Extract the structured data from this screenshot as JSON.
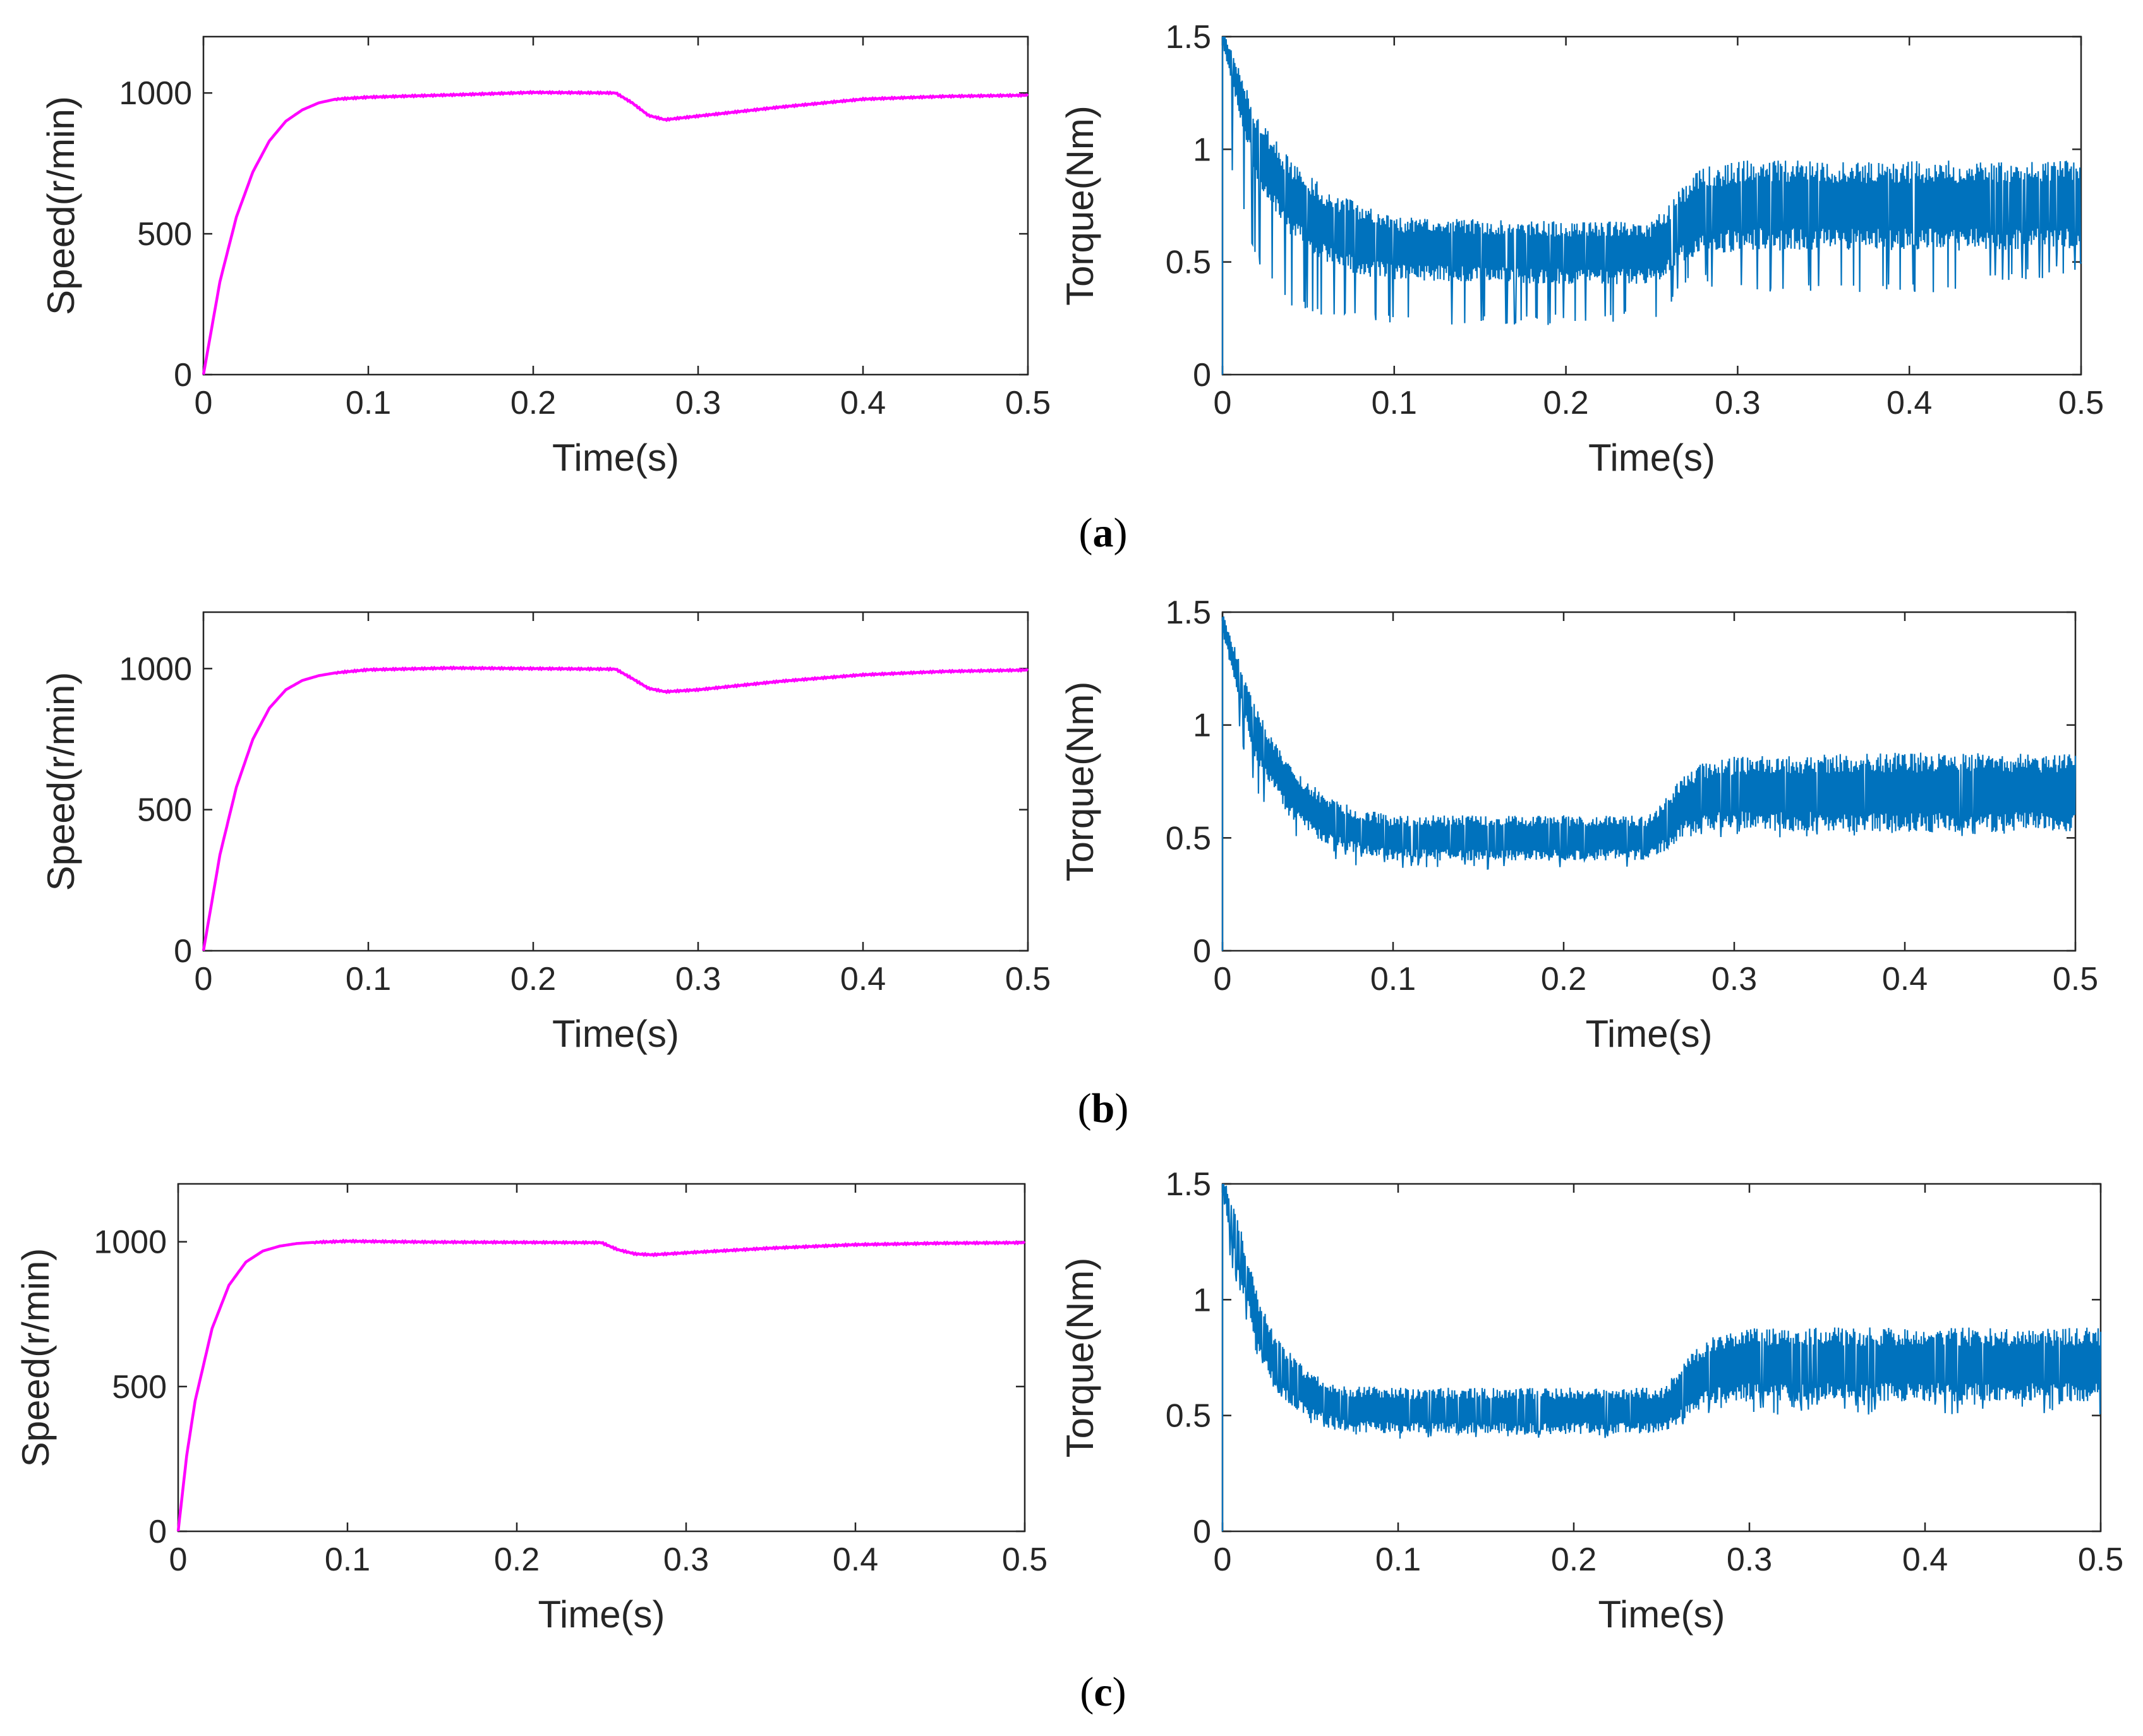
{
  "colors": {
    "speed": "#ff00ff",
    "torque": "#0072bd",
    "axis": "#262626"
  },
  "panels": [
    {
      "label": "a",
      "speed_chart": {
        "type": "line",
        "xlabel": "Time(s)",
        "ylabel": "Speed(r/min)",
        "xlim": [
          0,
          0.5
        ],
        "ylim": [
          0,
          1200
        ],
        "xticks": [
          0,
          0.1,
          0.2,
          0.3,
          0.4,
          0.5
        ],
        "yticks": [
          0,
          500,
          1000
        ],
        "xtick_labels": [
          "0",
          "0.1",
          "0.2",
          "0.3",
          "0.4",
          "0.5"
        ],
        "ytick_labels": [
          "0",
          "500",
          "1000"
        ],
        "series": [
          {
            "name": "speed",
            "x": [
              0,
              0.01,
              0.02,
              0.03,
              0.04,
              0.05,
              0.06,
              0.07,
              0.08,
              0.1,
              0.15,
              0.2,
              0.25,
              0.26,
              0.27,
              0.28,
              0.3,
              0.35,
              0.4,
              0.45,
              0.5
            ],
            "y": [
              0,
              330,
              560,
              720,
              830,
              900,
              940,
              965,
              978,
              985,
              993,
              1002,
              1000,
              965,
              920,
              905,
              918,
              950,
              978,
              988,
              992
            ]
          }
        ]
      },
      "torque_chart": {
        "type": "line",
        "xlabel": "Time(s)",
        "ylabel": "Torque(Nm)",
        "xlim": [
          0,
          0.5
        ],
        "ylim": [
          0,
          1.5
        ],
        "xticks": [
          0,
          0.1,
          0.2,
          0.3,
          0.4,
          0.5
        ],
        "yticks": [
          0,
          0.5,
          1,
          1.5
        ],
        "xtick_labels": [
          "0",
          "0.1",
          "0.2",
          "0.3",
          "0.4",
          "0.5"
        ],
        "ytick_labels": [
          "0",
          "0.5",
          "1",
          "1.5"
        ],
        "envelope": {
          "x": [
            0,
            0.02,
            0.04,
            0.06,
            0.08,
            0.1,
            0.2,
            0.25,
            0.26,
            0.27,
            0.28,
            0.3,
            0.4,
            0.5
          ],
          "center": [
            1.5,
            1.0,
            0.78,
            0.66,
            0.6,
            0.56,
            0.54,
            0.54,
            0.6,
            0.68,
            0.72,
            0.75,
            0.75,
            0.75
          ],
          "amplitude": [
            0.05,
            0.15,
            0.17,
            0.17,
            0.16,
            0.14,
            0.14,
            0.14,
            0.16,
            0.18,
            0.2,
            0.2,
            0.2,
            0.2
          ],
          "spike_low": [
            1.0,
            0.5,
            0.3,
            0.25,
            0.25,
            0.22,
            0.22,
            0.24,
            0.3,
            0.4,
            0.4,
            0.35,
            0.35,
            0.45
          ]
        }
      }
    },
    {
      "label": "b",
      "speed_chart": {
        "type": "line",
        "xlabel": "Time(s)",
        "ylabel": "Speed(r/min)",
        "xlim": [
          0,
          0.5
        ],
        "ylim": [
          0,
          1200
        ],
        "xticks": [
          0,
          0.1,
          0.2,
          0.3,
          0.4,
          0.5
        ],
        "yticks": [
          0,
          500,
          1000
        ],
        "xtick_labels": [
          "0",
          "0.1",
          "0.2",
          "0.3",
          "0.4",
          "0.5"
        ],
        "ytick_labels": [
          "0",
          "500",
          "1000"
        ],
        "series": [
          {
            "name": "speed",
            "x": [
              0,
              0.01,
              0.02,
              0.03,
              0.04,
              0.05,
              0.06,
              0.07,
              0.08,
              0.1,
              0.15,
              0.2,
              0.25,
              0.26,
              0.27,
              0.28,
              0.3,
              0.35,
              0.4,
              0.45,
              0.5
            ],
            "y": [
              0,
              340,
              580,
              750,
              860,
              925,
              958,
              975,
              985,
              996,
              1002,
              1000,
              998,
              965,
              930,
              918,
              925,
              955,
              978,
              990,
              995
            ]
          }
        ]
      },
      "torque_chart": {
        "type": "line",
        "xlabel": "Time(s)",
        "ylabel": "Torque(Nm)",
        "xlim": [
          0,
          0.5
        ],
        "ylim": [
          0,
          1.5
        ],
        "xticks": [
          0,
          0.1,
          0.2,
          0.3,
          0.4,
          0.5
        ],
        "yticks": [
          0,
          0.5,
          1,
          1.5
        ],
        "xtick_labels": [
          "0",
          "0.1",
          "0.2",
          "0.3",
          "0.4",
          "0.5"
        ],
        "ytick_labels": [
          "0",
          "0.5",
          "1",
          "1.5"
        ],
        "envelope": {
          "x": [
            0,
            0.02,
            0.04,
            0.06,
            0.08,
            0.1,
            0.2,
            0.25,
            0.26,
            0.27,
            0.28,
            0.3,
            0.4,
            0.5
          ],
          "center": [
            1.45,
            0.95,
            0.7,
            0.58,
            0.53,
            0.5,
            0.5,
            0.5,
            0.56,
            0.64,
            0.68,
            0.7,
            0.7,
            0.7
          ],
          "amplitude": [
            0.05,
            0.12,
            0.12,
            0.11,
            0.1,
            0.1,
            0.1,
            0.1,
            0.12,
            0.14,
            0.15,
            0.16,
            0.18,
            0.17
          ],
          "spike_low": [
            1.2,
            0.7,
            0.5,
            0.4,
            0.37,
            0.36,
            0.36,
            0.37,
            0.42,
            0.5,
            0.5,
            0.5,
            0.5,
            0.5
          ]
        }
      }
    },
    {
      "label": "c",
      "speed_chart": {
        "type": "line",
        "xlabel": "Time(s)",
        "ylabel": "Speed(r/min)",
        "xlim": [
          0,
          0.5
        ],
        "ylim": [
          0,
          1200
        ],
        "xticks": [
          0,
          0.1,
          0.2,
          0.3,
          0.4,
          0.5
        ],
        "yticks": [
          0,
          500,
          1000
        ],
        "xtick_labels": [
          "0",
          "0.1",
          "0.2",
          "0.3",
          "0.4",
          "0.5"
        ],
        "ytick_labels": [
          "0",
          "500",
          "1000"
        ],
        "series": [
          {
            "name": "speed",
            "x": [
              0,
              0.005,
              0.01,
              0.02,
              0.03,
              0.04,
              0.05,
              0.06,
              0.07,
              0.08,
              0.1,
              0.15,
              0.2,
              0.25,
              0.26,
              0.27,
              0.28,
              0.3,
              0.35,
              0.4,
              0.45,
              0.5
            ],
            "y": [
              0,
              260,
              450,
              700,
              850,
              930,
              968,
              985,
              994,
              998,
              1002,
              999,
              998,
              997,
              972,
              958,
              955,
              962,
              978,
              990,
              995,
              997
            ]
          }
        ]
      },
      "torque_chart": {
        "type": "line",
        "xlabel": "Time(s)",
        "ylabel": "Torque(Nm)",
        "xlim": [
          0,
          0.5
        ],
        "ylim": [
          0,
          1.5
        ],
        "xticks": [
          0,
          0.1,
          0.2,
          0.3,
          0.4,
          0.5
        ],
        "yticks": [
          0,
          0.5,
          1,
          1.5
        ],
        "xtick_labels": [
          "0",
          "0.1",
          "0.2",
          "0.3",
          "0.4",
          "0.5"
        ],
        "ytick_labels": [
          "0",
          "0.5",
          "1",
          "1.5"
        ],
        "envelope": {
          "x": [
            0,
            0.01,
            0.02,
            0.03,
            0.05,
            0.07,
            0.1,
            0.2,
            0.25,
            0.26,
            0.27,
            0.28,
            0.3,
            0.4,
            0.5
          ],
          "center": [
            1.5,
            1.2,
            0.9,
            0.72,
            0.58,
            0.53,
            0.52,
            0.52,
            0.52,
            0.58,
            0.66,
            0.7,
            0.72,
            0.72,
            0.72
          ],
          "amplitude": [
            0.05,
            0.12,
            0.12,
            0.12,
            0.1,
            0.1,
            0.1,
            0.1,
            0.1,
            0.12,
            0.14,
            0.15,
            0.16,
            0.16,
            0.16
          ],
          "spike_low": [
            1.3,
            1.0,
            0.75,
            0.6,
            0.45,
            0.42,
            0.4,
            0.4,
            0.4,
            0.45,
            0.5,
            0.5,
            0.5,
            0.5,
            0.5
          ]
        }
      }
    }
  ]
}
